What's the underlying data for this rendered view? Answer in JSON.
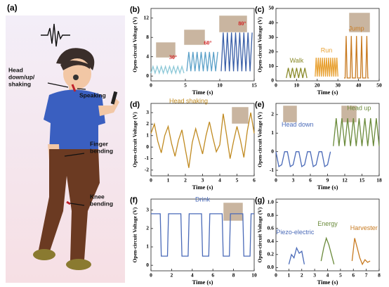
{
  "panel_a": {
    "panel": "(a)",
    "labels": [
      [
        "Head",
        "down/up/",
        "shaking"
      ],
      [
        "Speaking"
      ],
      [
        "Finger",
        "bending"
      ],
      [
        "Knee",
        "bending"
      ]
    ]
  },
  "chart_data": [
    {
      "type": "line",
      "panel": "(b)",
      "xlabel": "Time (s)",
      "ylabel": "Open-circuit Voltage (V)",
      "xlim": [
        0,
        15
      ],
      "xticks": [
        0,
        5,
        10,
        15
      ],
      "ylim": [
        -1,
        14
      ],
      "yticks": [
        0,
        4,
        8,
        12
      ],
      "annotations": [
        "30°",
        "60°",
        "80°"
      ],
      "series": [
        {
          "color": "#8ec9d8",
          "x": [
            0,
            0.3,
            0.6,
            0.9,
            1.2,
            1.5,
            1.8,
            2.1,
            2.4,
            2.7,
            3.0,
            3.3,
            3.6,
            3.9,
            4.2,
            4.5,
            4.8
          ],
          "values": [
            0.6,
            2,
            0.6,
            2,
            0.6,
            2,
            0.6,
            2,
            0.6,
            2,
            0.6,
            2,
            0.6,
            2,
            0.6,
            2,
            0.6
          ]
        },
        {
          "color": "#5aa0c8",
          "x": [
            5.2,
            5.5,
            5.8,
            6.1,
            6.4,
            6.7,
            7.0,
            7.3,
            7.6,
            7.9,
            8.2,
            8.5,
            8.8,
            9.1,
            9.4,
            9.7
          ],
          "values": [
            1,
            5,
            1,
            5,
            1,
            5,
            1,
            5,
            1,
            5,
            1,
            5,
            1,
            5,
            1,
            5
          ]
        },
        {
          "color": "#3a5fa8",
          "x": [
            10.2,
            10.5,
            10.8,
            11.1,
            11.4,
            11.7,
            12.0,
            12.3,
            12.6,
            12.9,
            13.2,
            13.5,
            13.8,
            14.1,
            14.4,
            14.7
          ],
          "values": [
            1,
            9,
            1,
            9,
            1,
            9,
            1,
            9,
            1,
            9,
            1,
            9,
            1,
            9,
            1,
            9
          ]
        }
      ]
    },
    {
      "type": "line",
      "panel": "(c)",
      "xlabel": "Time (s)",
      "ylabel": "Open-circuit Voltage (V)",
      "xlim": [
        0,
        50
      ],
      "xticks": [
        0,
        10,
        20,
        30,
        40,
        50
      ],
      "ylim": [
        0,
        50
      ],
      "yticks": [
        0,
        10,
        20,
        30,
        40,
        50
      ],
      "series": [
        {
          "name": "Walk",
          "color": "#8a8a2a",
          "x": [
            5,
            6,
            7,
            8,
            9,
            10,
            11,
            12,
            13,
            14,
            15
          ],
          "values": [
            2,
            9,
            2,
            9,
            2,
            9,
            2,
            9,
            2,
            9,
            2
          ]
        },
        {
          "name": "Run",
          "color": "#e8a030",
          "x": [
            19,
            19.5,
            20,
            20.5,
            21,
            21.5,
            22,
            22.5,
            23,
            23.5,
            24,
            24.5,
            25,
            25.5,
            26,
            26.5,
            27,
            27.5,
            28,
            28.5,
            29,
            29.5,
            30
          ],
          "values": [
            3,
            16,
            3,
            16,
            3,
            16,
            3,
            16,
            3,
            16,
            3,
            16,
            3,
            16,
            3,
            16,
            3,
            16,
            3,
            16,
            3,
            16,
            3
          ]
        },
        {
          "name": "Jump",
          "color": "#c87a20",
          "x": [
            33,
            33.5,
            34,
            34.5,
            35,
            35.5,
            36,
            36.5,
            37,
            37.5,
            38,
            38.5,
            39,
            39.5,
            40,
            40.5,
            41,
            41.5,
            42,
            42.5,
            43,
            43.5,
            44,
            44.5,
            45
          ],
          "values": [
            2,
            2,
            31,
            2,
            2,
            2,
            2,
            31,
            2,
            2,
            2,
            2,
            31,
            2,
            2,
            2,
            2,
            31,
            2,
            2,
            2,
            2,
            31,
            2,
            2
          ]
        }
      ]
    },
    {
      "type": "line",
      "panel": "(d)",
      "xlabel": "Time (s)",
      "ylabel": "Open-circuit Voltage (V)",
      "xlim": [
        0,
        6
      ],
      "xticks": [
        0,
        1,
        2,
        3,
        4,
        5,
        6
      ],
      "ylim": [
        -2.5,
        3.8
      ],
      "yticks": [
        -2,
        -1,
        0,
        1,
        2,
        3
      ],
      "series": [
        {
          "name": "Head shaking",
          "color": "#c08a20",
          "x": [
            0,
            0.2,
            0.4,
            0.6,
            0.8,
            1,
            1.2,
            1.4,
            1.6,
            1.8,
            2,
            2.2,
            2.4,
            2.6,
            2.8,
            3,
            3.2,
            3.4,
            3.6,
            3.8,
            4,
            4.2,
            4.4,
            4.6,
            4.8,
            5,
            5.2,
            5.4,
            5.6,
            5.8,
            6
          ],
          "values": [
            1.2,
            2,
            0.5,
            -0.5,
            1,
            1.8,
            0.3,
            -0.8,
            0.6,
            1.5,
            -0.2,
            -1.8,
            0.4,
            1.6,
            0.5,
            -0.6,
            1,
            2.2,
            0.8,
            -0.4,
            0.2,
            2.9,
            1,
            -1,
            0.5,
            1.8,
            0.6,
            -0.9,
            1.4,
            3,
            1.2
          ]
        }
      ]
    },
    {
      "type": "line",
      "panel": "(e)",
      "xlabel": "Time (s)",
      "ylabel": "Open-circuit Voltage (V)",
      "xlim": [
        0,
        18
      ],
      "xticks": [
        0,
        3,
        6,
        9,
        12,
        15,
        18
      ],
      "ylim": [
        -1.3,
        2.6
      ],
      "yticks": [
        -1,
        0,
        1,
        2
      ],
      "series": [
        {
          "name": "Head down",
          "color": "#4a6ab8",
          "x": [
            0,
            0.5,
            1,
            1.5,
            2,
            2.5,
            3,
            3.5,
            4,
            4.5,
            5,
            5.5,
            6,
            6.5,
            7,
            7.5,
            8,
            8.5,
            9,
            9.5
          ],
          "values": [
            0,
            -0.8,
            -0.7,
            0,
            0,
            -0.8,
            -0.7,
            0,
            0,
            -0.8,
            -0.7,
            0,
            0,
            -0.8,
            -0.7,
            0,
            0,
            -0.8,
            -0.7,
            0
          ]
        },
        {
          "name": "Head up",
          "color": "#6a8a3a",
          "x": [
            10,
            10.5,
            11,
            11.5,
            12,
            12.5,
            13,
            13.5,
            14,
            14.5,
            15,
            15.5,
            16,
            16.5,
            17,
            17.5,
            18
          ],
          "values": [
            0.3,
            1.8,
            0.3,
            1.8,
            0.3,
            1.8,
            0.3,
            1.8,
            0.3,
            1.8,
            0.3,
            1.8,
            0.3,
            1.8,
            0.3,
            1.8,
            0.3
          ]
        }
      ]
    },
    {
      "type": "line",
      "panel": "(f)",
      "xlabel": "Time (s)",
      "ylabel": "Open-circuit Voltage (V)",
      "xlim": [
        0,
        10
      ],
      "xticks": [
        0,
        2,
        4,
        6,
        8,
        10
      ],
      "ylim": [
        -0.3,
        3.6
      ],
      "yticks": [
        0,
        1,
        2,
        3
      ],
      "series": [
        {
          "name": "Drink",
          "color": "#4a6ab8",
          "x": [
            0,
            0.9,
            1.0,
            1.6,
            1.7,
            2.9,
            3.0,
            3.6,
            3.7,
            4.9,
            5.0,
            5.6,
            5.7,
            6.9,
            7.0,
            7.6,
            7.7,
            8.9,
            9.0,
            9.6,
            9.7,
            10
          ],
          "values": [
            2.8,
            2.8,
            0.5,
            0.5,
            2.8,
            2.8,
            0.5,
            0.5,
            2.8,
            2.8,
            0.5,
            0.5,
            2.8,
            2.8,
            0.5,
            0.5,
            2.8,
            2.8,
            0.5,
            0.5,
            2.8,
            2.8
          ]
        }
      ]
    },
    {
      "type": "line",
      "panel": "(g)",
      "xlabel": "Time (s)",
      "ylabel": "Open-circuit Voltage (V)",
      "xlim": [
        0,
        8
      ],
      "xticks": [
        0,
        1,
        2,
        3,
        4,
        5,
        6,
        7,
        8
      ],
      "ylim": [
        -0.05,
        1.05
      ],
      "yticks": [
        {
          "value": 0,
          "label": "0.0"
        },
        {
          "value": 0.2,
          "label": "0.2"
        },
        {
          "value": 0.4,
          "label": "0.4"
        },
        {
          "value": 0.6,
          "label": "0.6"
        },
        {
          "value": 0.8,
          "label": "0.8"
        },
        {
          "value": 1,
          "label": "1.0"
        }
      ],
      "series": [
        {
          "name": "Piezo-electric",
          "color": "#4a6ab8",
          "x": [
            1,
            1.2,
            1.4,
            1.6,
            1.8,
            2,
            2.2
          ],
          "values": [
            0.05,
            0.2,
            0.15,
            0.3,
            0.22,
            0.25,
            0.05
          ]
        },
        {
          "name": "Energy",
          "color": "#6a8a3a",
          "x": [
            3.5,
            3.7,
            3.9,
            4.1,
            4.3,
            4.5
          ],
          "values": [
            0.1,
            0.3,
            0.45,
            0.35,
            0.2,
            0.05
          ]
        },
        {
          "name": "Harvester",
          "color": "#c87a20",
          "x": [
            5.9,
            6.1,
            6.3,
            6.5,
            6.7,
            6.9,
            7.1,
            7.3
          ],
          "values": [
            0.1,
            0.45,
            0.3,
            0.15,
            0.05,
            0.12,
            0.08,
            0.1
          ]
        }
      ]
    }
  ]
}
